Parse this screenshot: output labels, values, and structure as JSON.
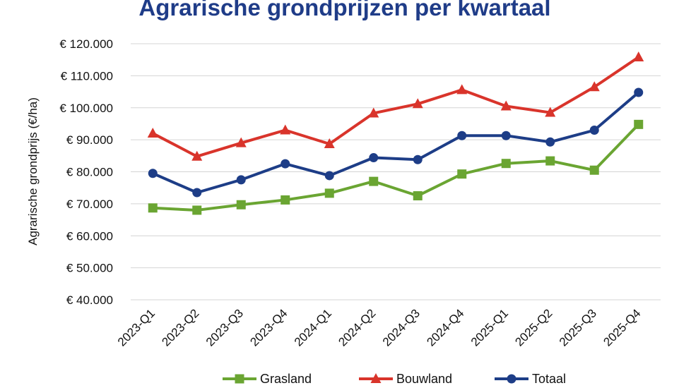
{
  "chart_data": {
    "type": "line",
    "title": "Agrarische grondprijzen per kwartaal",
    "xlabel": "",
    "ylabel": "Agrarische grondprijs (€/ha)",
    "ylim": [
      40000,
      120000
    ],
    "yticks": [
      40000,
      50000,
      60000,
      70000,
      80000,
      90000,
      100000,
      110000,
      120000
    ],
    "ytick_labels": [
      "€ 40.000",
      "€ 50.000",
      "€ 60.000",
      "€ 70.000",
      "€ 80.000",
      "€ 90.000",
      "€ 100.000",
      "€ 110.000",
      "€ 120.000"
    ],
    "categories": [
      "2023-Q1",
      "2023-Q2",
      "2023-Q3",
      "2023-Q4",
      "2024-Q1",
      "2024-Q2",
      "2024-Q3",
      "2024-Q4",
      "2025-Q1",
      "2025-Q2",
      "2025-Q3",
      "2025-Q4"
    ],
    "grid": true,
    "legend_position": "bottom",
    "title_color": "#1f3c88",
    "series": [
      {
        "name": "Grasland",
        "color": "#6aa532",
        "marker": "square",
        "values": [
          68700,
          68000,
          69700,
          71200,
          73300,
          77000,
          72500,
          79300,
          82600,
          83400,
          80500,
          94800
        ]
      },
      {
        "name": "Bouwland",
        "color": "#d9342b",
        "marker": "triangle",
        "values": [
          92000,
          84800,
          89000,
          93000,
          88700,
          98300,
          101200,
          105600,
          100500,
          98500,
          106500,
          115800
        ]
      },
      {
        "name": "Totaal",
        "color": "#1d3d87",
        "marker": "circle",
        "values": [
          79500,
          73500,
          77500,
          82500,
          78800,
          84400,
          83800,
          91300,
          91300,
          89300,
          93000,
          104800
        ]
      }
    ]
  }
}
